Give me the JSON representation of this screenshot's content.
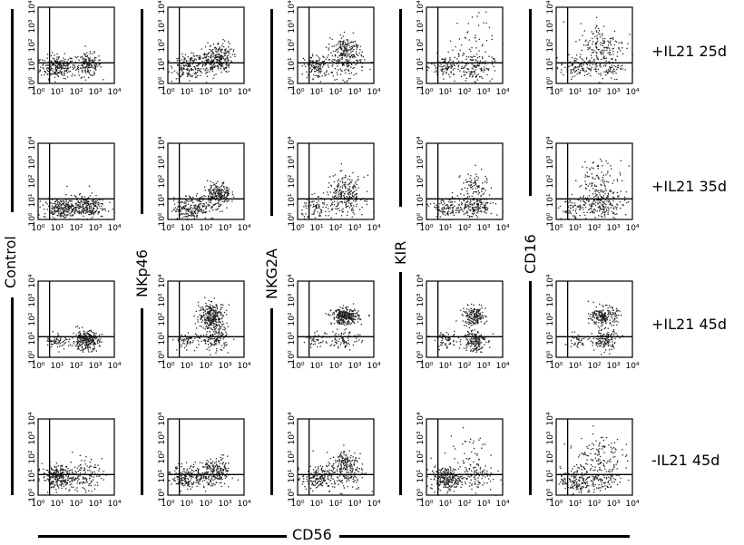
{
  "row_labels": [
    "+IL21 25d",
    "+IL21 35d",
    "+IL21 45d",
    "-IL21 45d"
  ],
  "column_markers": [
    "Control",
    "NKp46",
    "NKG2A",
    "KIR",
    "CD16"
  ],
  "x_axis_title": "CD56",
  "axis_ticks": {
    "x": [
      "10⁰",
      "10¹",
      "10²",
      "10³",
      "10⁴"
    ],
    "y": [
      "10⁰",
      "10¹",
      "10²",
      "10³",
      "10⁴"
    ]
  },
  "quadrant_gate": {
    "x_gate": 4,
    "y_gate": 12
  },
  "panels": [
    [
      {
        "clusters": [
          [
            10,
            8,
            0.45,
            0.3,
            240
          ],
          [
            400,
            10,
            0.35,
            0.3,
            160
          ]
        ]
      },
      {
        "clusters": [
          [
            12,
            8,
            0.4,
            0.3,
            160
          ],
          [
            120,
            12,
            0.45,
            0.35,
            100
          ],
          [
            450,
            25,
            0.35,
            0.4,
            200
          ]
        ]
      },
      {
        "clusters": [
          [
            10,
            8,
            0.35,
            0.3,
            120
          ],
          [
            300,
            20,
            0.5,
            0.5,
            200
          ],
          [
            350,
            80,
            0.3,
            0.3,
            80
          ]
        ]
      },
      {
        "clusters": [
          [
            10,
            8,
            0.4,
            0.3,
            100
          ],
          [
            300,
            8,
            0.5,
            0.35,
            140
          ],
          [
            200,
            200,
            0.6,
            0.7,
            40
          ]
        ]
      },
      {
        "clusters": [
          [
            10,
            8,
            0.4,
            0.3,
            80
          ],
          [
            300,
            8,
            0.5,
            0.35,
            100
          ],
          [
            250,
            100,
            0.6,
            0.6,
            160
          ]
        ]
      }
    ],
    [
      {
        "clusters": [
          [
            15,
            4,
            0.45,
            0.25,
            220
          ],
          [
            300,
            5,
            0.5,
            0.3,
            240
          ]
        ]
      },
      {
        "clusters": [
          [
            15,
            4,
            0.45,
            0.3,
            180
          ],
          [
            120,
            10,
            0.4,
            0.3,
            80
          ],
          [
            450,
            25,
            0.3,
            0.3,
            180
          ]
        ]
      },
      {
        "clusters": [
          [
            10,
            4,
            0.4,
            0.3,
            80
          ],
          [
            300,
            20,
            0.5,
            0.5,
            260
          ]
        ]
      },
      {
        "clusters": [
          [
            10,
            4,
            0.4,
            0.3,
            100
          ],
          [
            300,
            5,
            0.5,
            0.3,
            180
          ],
          [
            300,
            60,
            0.35,
            0.4,
            80
          ]
        ]
      },
      {
        "clusters": [
          [
            10,
            4,
            0.4,
            0.3,
            80
          ],
          [
            300,
            6,
            0.5,
            0.35,
            160
          ],
          [
            200,
            100,
            0.6,
            0.6,
            120
          ]
        ]
      }
    ],
    [
      {
        "clusters": [
          [
            10,
            8,
            0.3,
            0.2,
            60
          ],
          [
            300,
            8,
            0.35,
            0.25,
            280
          ]
        ]
      },
      {
        "clusters": [
          [
            10,
            8,
            0.35,
            0.2,
            60
          ],
          [
            200,
            150,
            0.35,
            0.35,
            300
          ],
          [
            300,
            10,
            0.35,
            0.3,
            140
          ]
        ]
      },
      {
        "clusters": [
          [
            10,
            8,
            0.3,
            0.2,
            40
          ],
          [
            300,
            150,
            0.35,
            0.2,
            320
          ],
          [
            300,
            10,
            0.4,
            0.3,
            80
          ]
        ]
      },
      {
        "clusters": [
          [
            10,
            8,
            0.3,
            0.2,
            60
          ],
          [
            300,
            150,
            0.3,
            0.25,
            180
          ],
          [
            300,
            8,
            0.3,
            0.3,
            160
          ]
        ]
      },
      {
        "clusters": [
          [
            10,
            8,
            0.3,
            0.2,
            40
          ],
          [
            300,
            150,
            0.35,
            0.25,
            200
          ],
          [
            300,
            8,
            0.35,
            0.3,
            140
          ]
        ]
      }
    ],
    [
      {
        "clusters": [
          [
            10,
            10,
            0.4,
            0.3,
            240
          ],
          [
            200,
            12,
            0.5,
            0.4,
            140
          ]
        ]
      },
      {
        "clusters": [
          [
            10,
            10,
            0.4,
            0.3,
            180
          ],
          [
            120,
            12,
            0.45,
            0.35,
            100
          ],
          [
            400,
            20,
            0.35,
            0.35,
            140
          ]
        ]
      },
      {
        "clusters": [
          [
            10,
            8,
            0.4,
            0.3,
            160
          ],
          [
            300,
            20,
            0.5,
            0.5,
            200
          ],
          [
            350,
            80,
            0.3,
            0.3,
            60
          ]
        ]
      },
      {
        "clusters": [
          [
            10,
            8,
            0.4,
            0.3,
            240
          ],
          [
            300,
            10,
            0.5,
            0.4,
            100
          ],
          [
            200,
            200,
            0.6,
            0.6,
            40
          ]
        ]
      },
      {
        "clusters": [
          [
            10,
            6,
            0.4,
            0.35,
            160
          ],
          [
            300,
            8,
            0.5,
            0.35,
            100
          ],
          [
            150,
            150,
            0.6,
            0.6,
            120
          ]
        ]
      }
    ]
  ]
}
